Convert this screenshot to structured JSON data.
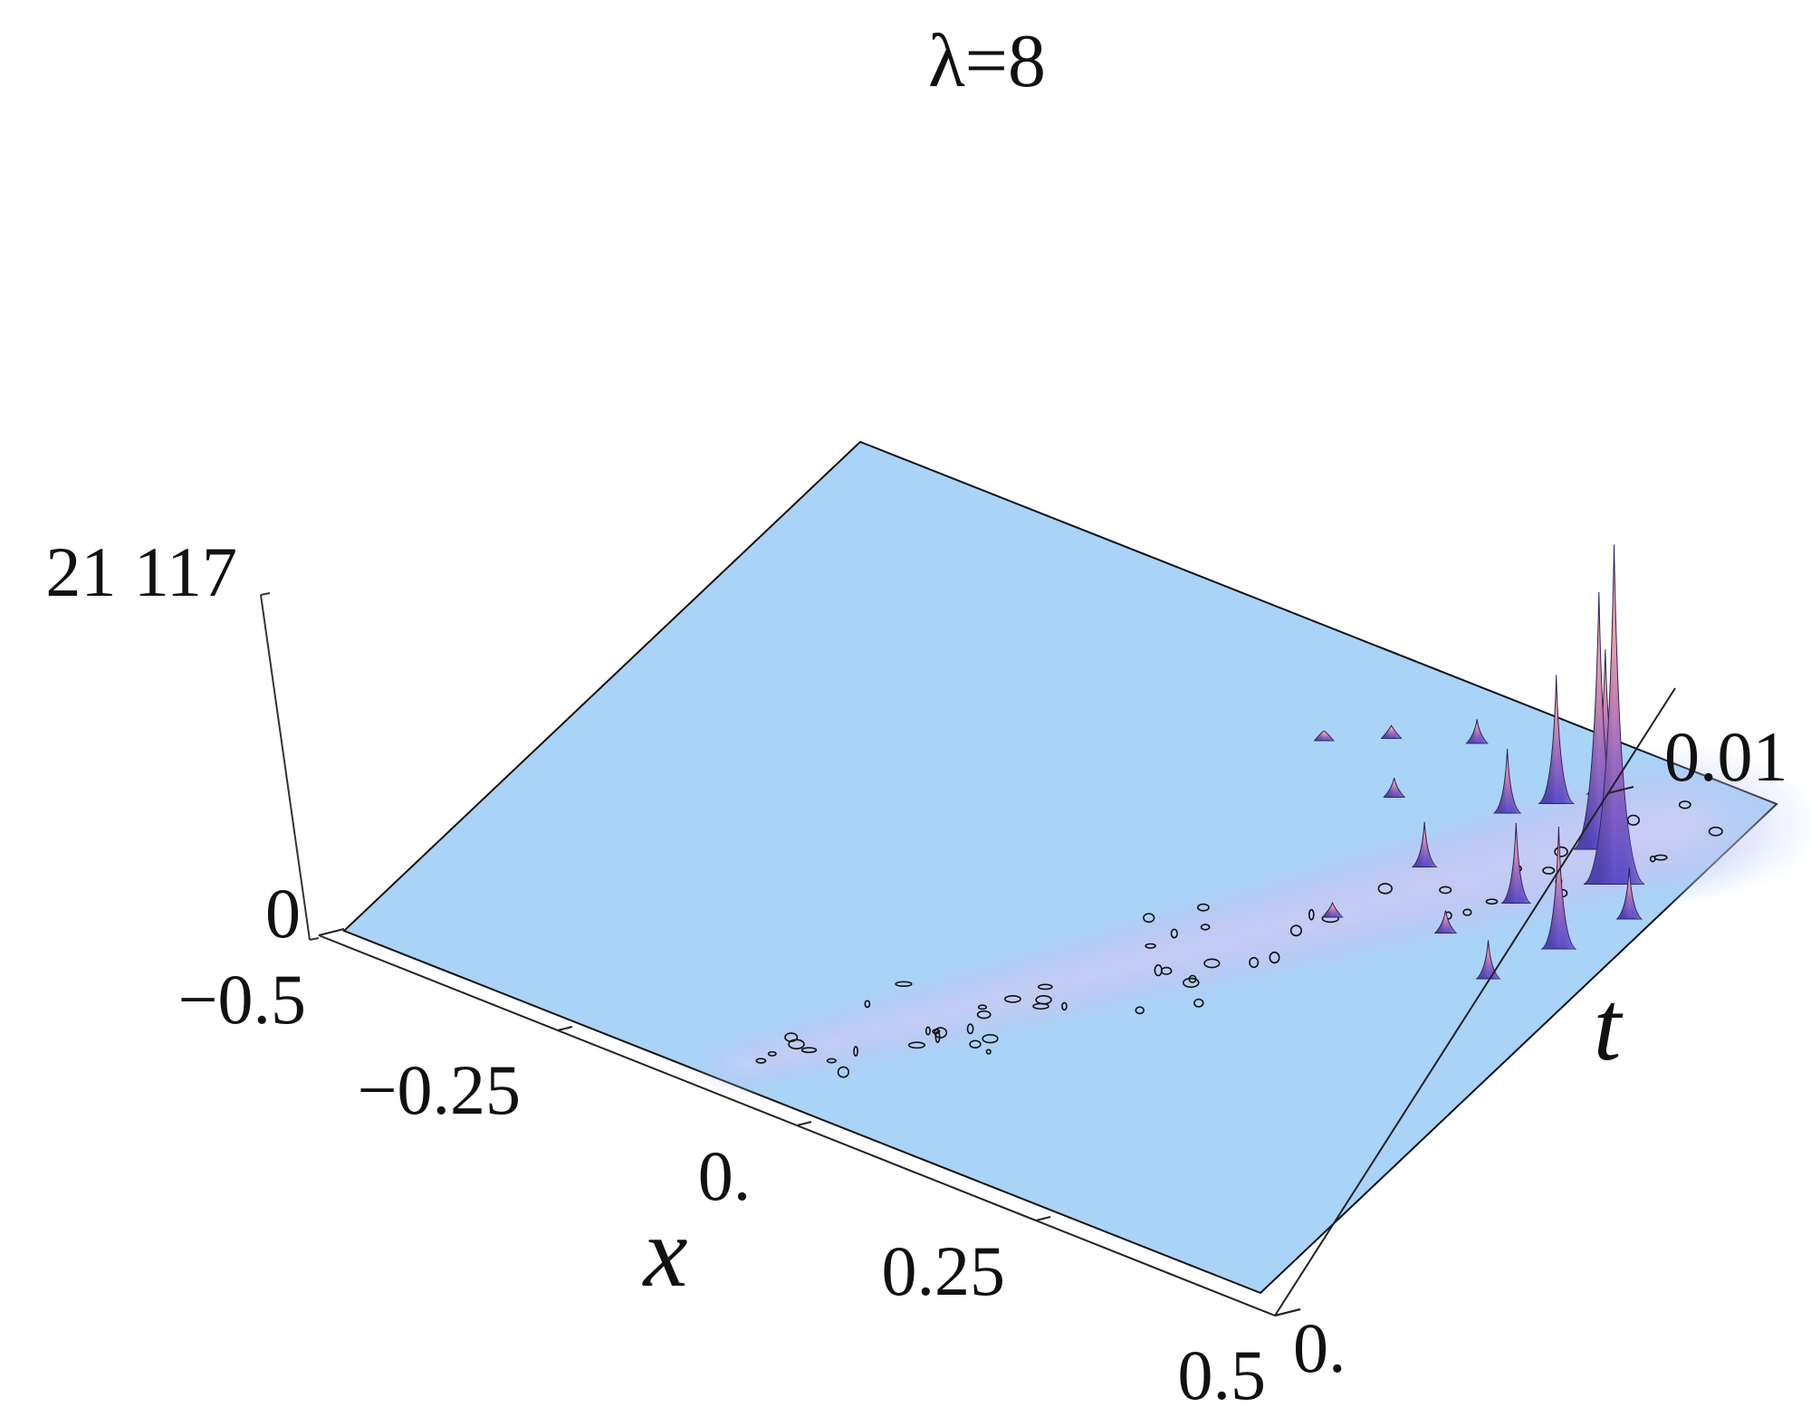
{
  "chart_data": {
    "type": "surface3d",
    "title": "λ=8",
    "x_axis": {
      "label": "x",
      "ticks": [
        "−0.5",
        "−0.25",
        "0.",
        "0.25",
        "0.5"
      ],
      "range": [
        -0.5,
        0.5
      ]
    },
    "t_axis": {
      "label": "t",
      "ticks": [
        "0.",
        "0.01"
      ],
      "range": [
        0,
        0.012
      ]
    },
    "z_axis": {
      "label": "",
      "ticks": [
        "0",
        "21 117"
      ],
      "range": [
        0,
        21117
      ]
    },
    "peaks": [
      {
        "x": 0.44,
        "t": 0.0095,
        "z": 21117
      },
      {
        "x": 0.4,
        "t": 0.01,
        "z": 16000
      },
      {
        "x": 0.36,
        "t": 0.011,
        "z": 9000
      },
      {
        "x": 0.33,
        "t": 0.0105,
        "z": 8000
      },
      {
        "x": 0.45,
        "t": 0.008,
        "z": 7600
      },
      {
        "x": 0.38,
        "t": 0.0085,
        "z": 5000
      },
      {
        "x": 0.3,
        "t": 0.01,
        "z": 4000
      },
      {
        "x": 0.48,
        "t": 0.009,
        "z": 3200
      },
      {
        "x": 0.28,
        "t": 0.0085,
        "z": 2800
      },
      {
        "x": 0.42,
        "t": 0.007,
        "z": 2400
      },
      {
        "x": 0.22,
        "t": 0.011,
        "z": 1500
      },
      {
        "x": 0.2,
        "t": 0.0095,
        "z": 1200
      },
      {
        "x": 0.35,
        "t": 0.0075,
        "z": 1400
      },
      {
        "x": 0.15,
        "t": 0.0105,
        "z": 800
      },
      {
        "x": 0.25,
        "t": 0.007,
        "z": 900
      },
      {
        "x": 0.1,
        "t": 0.01,
        "z": 600
      }
    ],
    "colors": {
      "base": "#a9d3f7",
      "peak_low": "#5a4fd0",
      "peak_mid": "#c77fb6",
      "peak_high": "#ffb8a0"
    }
  }
}
